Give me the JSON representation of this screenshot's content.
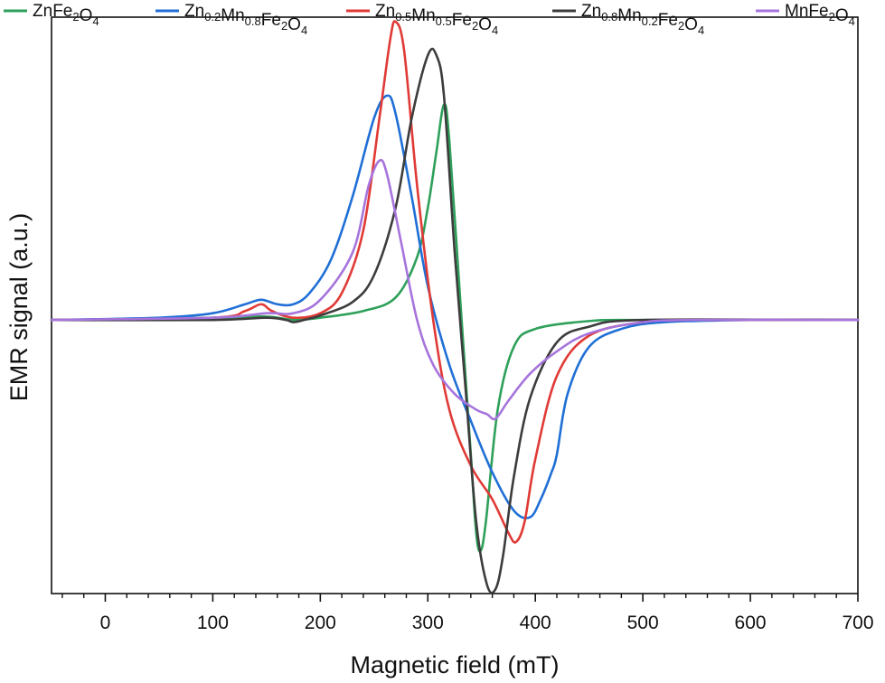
{
  "chart_data": {
    "type": "line",
    "title": "",
    "xlabel": "Magnetic field (mT)",
    "ylabel": "EMR signal (a.u.)",
    "xlim": [
      -50,
      700
    ],
    "ylim": [
      -1.22,
      1.35
    ],
    "x_ticks": [
      0,
      100,
      200,
      300,
      400,
      500,
      600,
      700
    ],
    "x_tick_labels": [
      "0",
      "100",
      "200",
      "300",
      "400",
      "500",
      "600",
      "700"
    ],
    "y_ticks_shown": false,
    "legend_position": "top, outside plot",
    "series": [
      {
        "name": "ZnFe2O4",
        "label_parts": [
          [
            "Zn",
            ""
          ],
          [
            "Fe",
            ""
          ],
          [
            "2",
            "sub"
          ],
          [
            "O",
            ""
          ],
          [
            "4",
            "sub"
          ]
        ],
        "color": "#2ea05a",
        "points": [
          [
            -50,
            0.0
          ],
          [
            100,
            0.01
          ],
          [
            150,
            0.015
          ],
          [
            175,
            0.0
          ],
          [
            200,
            0.01
          ],
          [
            240,
            0.04
          ],
          [
            270,
            0.1
          ],
          [
            290,
            0.28
          ],
          [
            300,
            0.5
          ],
          [
            308,
            0.75
          ],
          [
            315,
            0.96
          ],
          [
            320,
            0.8
          ],
          [
            330,
            0.1
          ],
          [
            340,
            -0.6
          ],
          [
            345,
            -0.95
          ],
          [
            349,
            -1.03
          ],
          [
            354,
            -0.9
          ],
          [
            365,
            -0.4
          ],
          [
            380,
            -0.12
          ],
          [
            400,
            -0.04
          ],
          [
            450,
            -0.005
          ],
          [
            500,
            0.0
          ],
          [
            700,
            0.0
          ]
        ]
      },
      {
        "name": "Zn0.2Mn0.8Fe2O4",
        "label_parts": [
          [
            "Zn",
            ""
          ],
          [
            "0.2",
            "sub"
          ],
          [
            "Mn",
            ""
          ],
          [
            "0.8",
            "sub"
          ],
          [
            "Fe",
            ""
          ],
          [
            "2",
            "sub"
          ],
          [
            "O",
            ""
          ],
          [
            "4",
            "sub"
          ]
        ],
        "color": "#1f6fd6",
        "points": [
          [
            -50,
            0.0
          ],
          [
            50,
            0.01
          ],
          [
            100,
            0.03
          ],
          [
            130,
            0.07
          ],
          [
            145,
            0.09
          ],
          [
            160,
            0.07
          ],
          [
            175,
            0.07
          ],
          [
            190,
            0.12
          ],
          [
            210,
            0.27
          ],
          [
            230,
            0.55
          ],
          [
            250,
            0.9
          ],
          [
            262,
            1.0
          ],
          [
            270,
            0.92
          ],
          [
            285,
            0.55
          ],
          [
            300,
            0.15
          ],
          [
            320,
            -0.2
          ],
          [
            340,
            -0.45
          ],
          [
            360,
            -0.68
          ],
          [
            380,
            -0.85
          ],
          [
            395,
            -0.88
          ],
          [
            405,
            -0.8
          ],
          [
            415,
            -0.68
          ],
          [
            420,
            -0.6
          ],
          [
            430,
            -0.33
          ],
          [
            450,
            -0.12
          ],
          [
            480,
            -0.04
          ],
          [
            520,
            -0.01
          ],
          [
            600,
            0.0
          ],
          [
            700,
            0.0
          ]
        ]
      },
      {
        "name": "Zn0.5Mn0.5Fe2O4",
        "label_parts": [
          [
            "Zn",
            ""
          ],
          [
            "0.5",
            "sub"
          ],
          [
            "Mn",
            ""
          ],
          [
            "0.5",
            "sub"
          ],
          [
            "Fe",
            ""
          ],
          [
            "2",
            "sub"
          ],
          [
            "O",
            ""
          ],
          [
            "4",
            "sub"
          ]
        ],
        "color": "#e03a36",
        "points": [
          [
            -50,
            0.0
          ],
          [
            100,
            0.01
          ],
          [
            130,
            0.04
          ],
          [
            145,
            0.07
          ],
          [
            155,
            0.04
          ],
          [
            175,
            0.01
          ],
          [
            200,
            0.03
          ],
          [
            220,
            0.12
          ],
          [
            240,
            0.4
          ],
          [
            255,
            0.9
          ],
          [
            265,
            1.25
          ],
          [
            270,
            1.33
          ],
          [
            278,
            1.2
          ],
          [
            290,
            0.6
          ],
          [
            305,
            0.0
          ],
          [
            320,
            -0.4
          ],
          [
            340,
            -0.65
          ],
          [
            360,
            -0.8
          ],
          [
            375,
            -0.95
          ],
          [
            382,
            -0.99
          ],
          [
            390,
            -0.9
          ],
          [
            400,
            -0.62
          ],
          [
            420,
            -0.25
          ],
          [
            450,
            -0.07
          ],
          [
            500,
            -0.01
          ],
          [
            550,
            0.0
          ],
          [
            700,
            0.0
          ]
        ]
      },
      {
        "name": "Zn0.8Mn0.2Fe2O4",
        "label_parts": [
          [
            "Zn",
            ""
          ],
          [
            "0.8",
            "sub"
          ],
          [
            "Mn",
            ""
          ],
          [
            "0.2",
            "sub"
          ],
          [
            "Fe",
            ""
          ],
          [
            "2",
            "sub"
          ],
          [
            "O",
            ""
          ],
          [
            "4",
            "sub"
          ]
        ],
        "color": "#3c3c3c",
        "points": [
          [
            -50,
            0.0
          ],
          [
            100,
            0.0
          ],
          [
            150,
            0.01
          ],
          [
            168,
            0.0
          ],
          [
            175,
            -0.01
          ],
          [
            185,
            0.0
          ],
          [
            200,
            0.02
          ],
          [
            230,
            0.08
          ],
          [
            250,
            0.2
          ],
          [
            270,
            0.5
          ],
          [
            285,
            0.9
          ],
          [
            300,
            1.18
          ],
          [
            308,
            1.18
          ],
          [
            315,
            1.0
          ],
          [
            325,
            0.3
          ],
          [
            335,
            -0.3
          ],
          [
            345,
            -0.9
          ],
          [
            355,
            -1.18
          ],
          [
            363,
            -1.2
          ],
          [
            370,
            -1.05
          ],
          [
            380,
            -0.7
          ],
          [
            395,
            -0.35
          ],
          [
            420,
            -0.1
          ],
          [
            450,
            -0.03
          ],
          [
            500,
            0.0
          ],
          [
            700,
            0.0
          ]
        ]
      },
      {
        "name": "MnFe2O4",
        "label_parts": [
          [
            "Mn",
            ""
          ],
          [
            "Fe",
            ""
          ],
          [
            "2",
            "sub"
          ],
          [
            "O",
            ""
          ],
          [
            "4",
            "sub"
          ]
        ],
        "color": "#a674dc",
        "points": [
          [
            -50,
            0.0
          ],
          [
            100,
            0.01
          ],
          [
            150,
            0.03
          ],
          [
            175,
            0.03
          ],
          [
            200,
            0.09
          ],
          [
            230,
            0.3
          ],
          [
            245,
            0.6
          ],
          [
            255,
            0.71
          ],
          [
            262,
            0.65
          ],
          [
            275,
            0.35
          ],
          [
            290,
            0.0
          ],
          [
            305,
            -0.2
          ],
          [
            325,
            -0.33
          ],
          [
            345,
            -0.4
          ],
          [
            355,
            -0.42
          ],
          [
            363,
            -0.44
          ],
          [
            375,
            -0.36
          ],
          [
            395,
            -0.24
          ],
          [
            420,
            -0.14
          ],
          [
            450,
            -0.06
          ],
          [
            500,
            -0.01
          ],
          [
            550,
            0.0
          ],
          [
            700,
            0.0
          ]
        ]
      }
    ]
  }
}
